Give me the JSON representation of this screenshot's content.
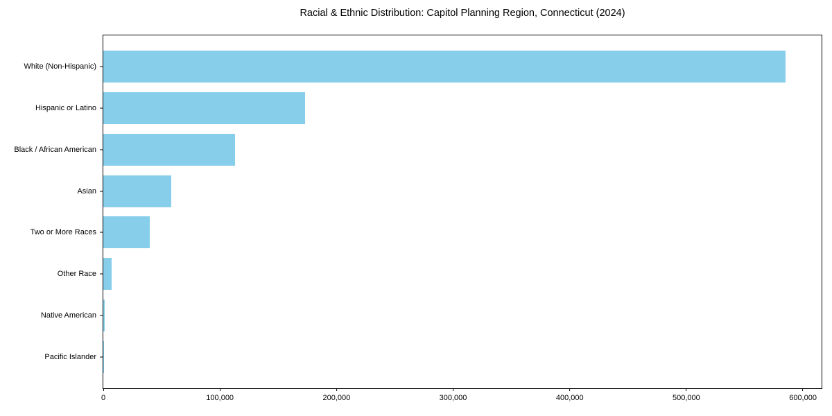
{
  "chart_data": {
    "type": "bar",
    "orientation": "horizontal",
    "title": "Racial & Ethnic Distribution: Capitol Planning Region, Connecticut (2024)",
    "categories": [
      "White (Non-Hispanic)",
      "Hispanic or Latino",
      "Black / African American",
      "Asian",
      "Two or More Races",
      "Other Race",
      "Native American",
      "Pacific Islander"
    ],
    "values": [
      585000,
      173000,
      113000,
      58500,
      40000,
      7000,
      1200,
      300
    ],
    "xlabel": "",
    "ylabel": "",
    "xlim": [
      0,
      616000
    ],
    "x_ticks": [
      0,
      100000,
      200000,
      300000,
      400000,
      500000,
      600000
    ],
    "x_tick_labels": [
      "0",
      "100,000",
      "200,000",
      "300,000",
      "400,000",
      "500,000",
      "600,000"
    ],
    "grid": false,
    "legend": null,
    "bar_color": "#87CEEB",
    "axis_color": "#000000",
    "text_color": "#000000",
    "background_color": "#ffffff",
    "bar_height_fraction": 0.77
  }
}
